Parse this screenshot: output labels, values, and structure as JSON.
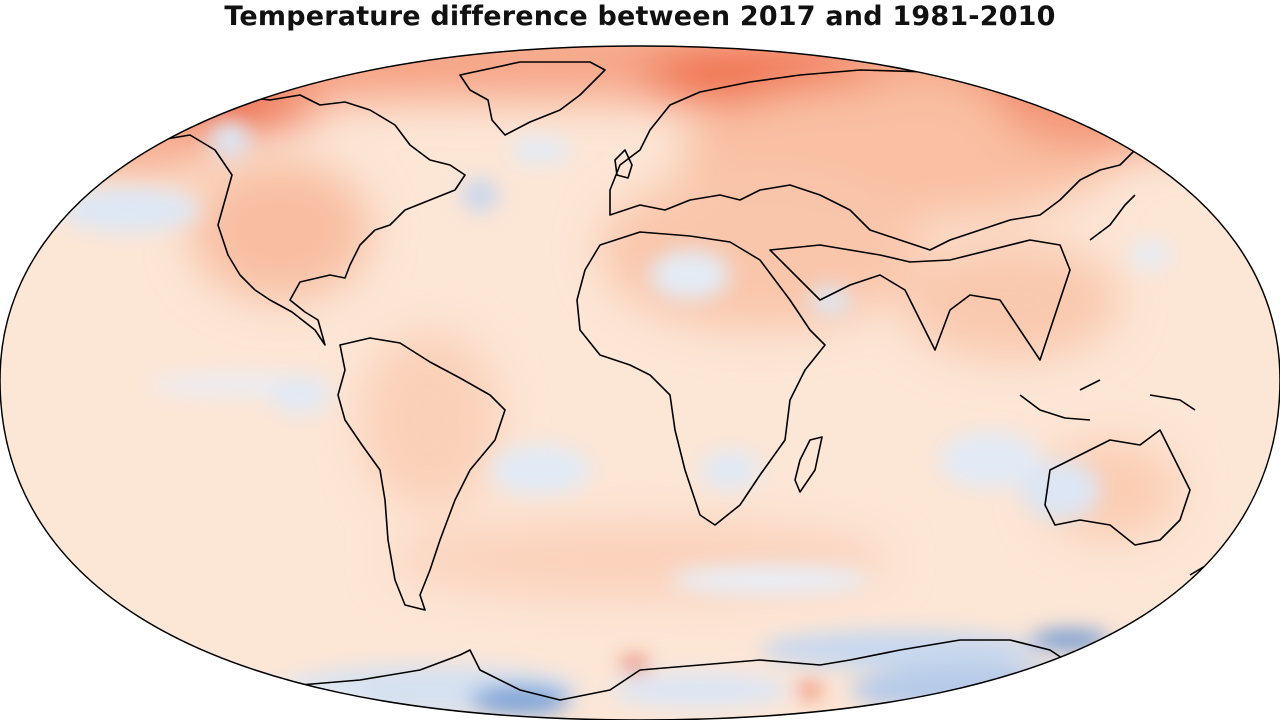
{
  "map": {
    "title": "Temperature difference between 2017 and 1981-2010",
    "projection": "robinson",
    "variable": "surface air temperature anomaly",
    "colors": {
      "strong_warm": "#e8391e",
      "warm": "#f49a7c",
      "mild_warm": "#fbd4bd",
      "neutral": "#fdefe4",
      "mild_cool": "#e6eef8",
      "cool": "#b4cbe8",
      "strong_cool": "#5f8fcf",
      "coastline": "#000000"
    }
  }
}
